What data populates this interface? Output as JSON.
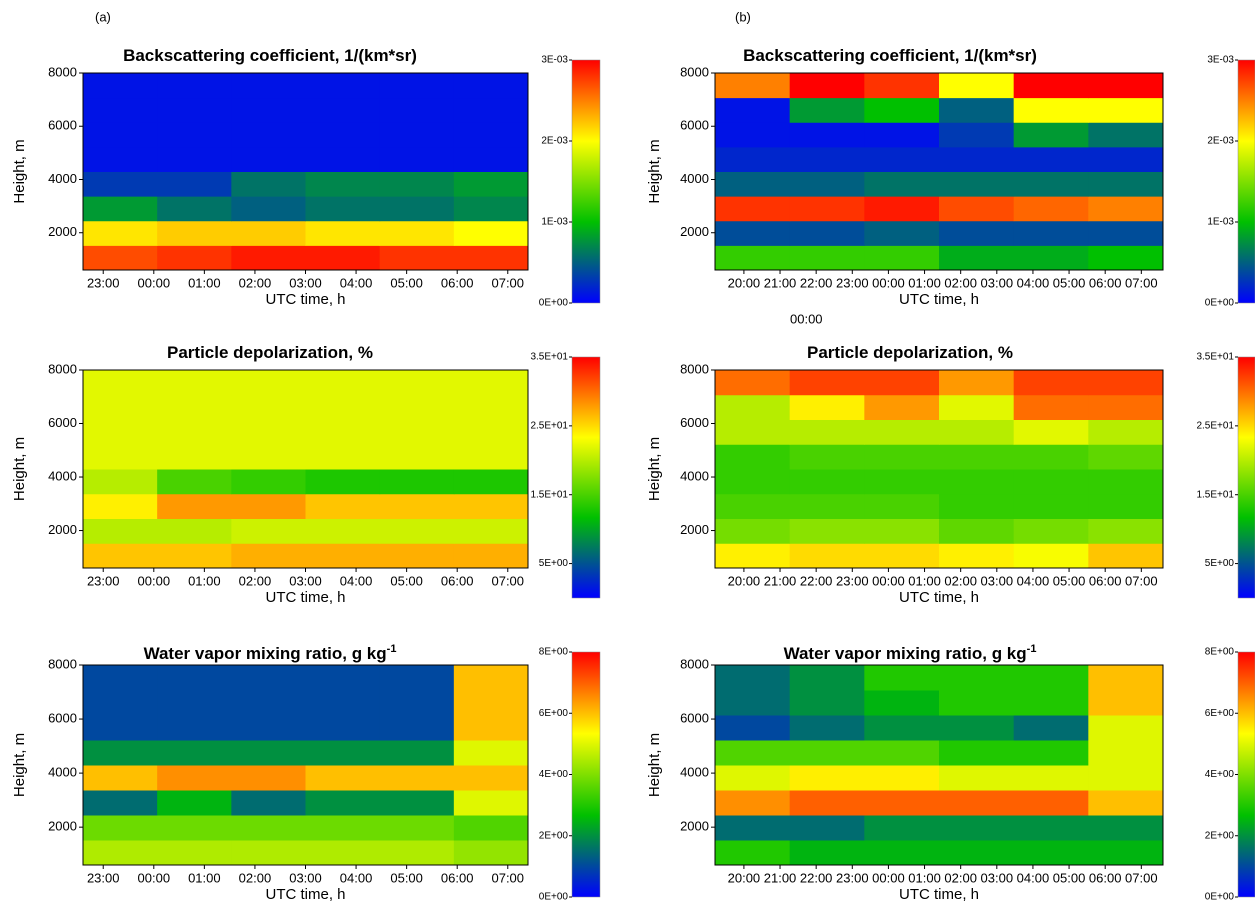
{
  "labels": [
    "(a)",
    "(b)"
  ],
  "chart_data": [
    {
      "type": "heatmap",
      "title": "Backscattering coefficient, 1/(km*sr)",
      "xlabel": "UTC time, h",
      "ylabel": "Height, m",
      "xlim": [
        22.6,
        31.4
      ],
      "xticks": [
        {
          "value": 23,
          "label": "23:00"
        },
        {
          "value": 24,
          "label": "00:00"
        },
        {
          "value": 25,
          "label": "01:00"
        },
        {
          "value": 26,
          "label": "02:00"
        },
        {
          "value": 27,
          "label": "03:00"
        },
        {
          "value": 28,
          "label": "04:00"
        },
        {
          "value": 29,
          "label": "05:00"
        },
        {
          "value": 30,
          "label": "06:00"
        },
        {
          "value": 31,
          "label": "07:00"
        }
      ],
      "ylim": [
        600,
        8000
      ],
      "yticks": [
        2000,
        4000,
        6000,
        8000
      ],
      "zlim": [
        0,
        0.003
      ],
      "zticks": [
        {
          "value": 0,
          "label": "0E+00"
        },
        {
          "value": 0.001,
          "label": "1E-03"
        },
        {
          "value": 0.002,
          "label": "2E-03"
        },
        {
          "value": 0.003,
          "label": "3E-03"
        }
      ],
      "colormap": [
        "#0000ff",
        "#00c000",
        "#ffff00",
        "#ff0000"
      ],
      "z": [
        [
          0.0027,
          0.0028,
          0.0029,
          0.0029,
          0.0028,
          0.0028
        ],
        [
          0.0021,
          0.0022,
          0.0022,
          0.0021,
          0.0021,
          0.002
        ],
        [
          0.0008,
          0.0006,
          0.0005,
          0.0006,
          0.0006,
          0.0007
        ],
        [
          0.0003,
          0.0003,
          0.0006,
          0.0007,
          0.0007,
          0.0008
        ],
        [
          0.0001,
          0.0001,
          0.0001,
          0.0001,
          0.0001,
          0.0001
        ],
        [
          0.0001,
          0.0001,
          0.0001,
          0.0001,
          0.0001,
          0.0001
        ],
        [
          0.0001,
          0.0001,
          0.0001,
          0.0001,
          0.0001,
          0.0001
        ],
        [
          0.0001,
          0.0001,
          0.0001,
          0.0001,
          0.0001,
          0.0001
        ]
      ]
    },
    {
      "type": "heatmap",
      "title": "Backscattering coefficient, 1/(km*sr)",
      "xlabel": "UTC time, h",
      "ylabel": "Height, m",
      "annotation": "00:00",
      "xlim": [
        19.2,
        31.6
      ],
      "xticks": [
        {
          "value": 20,
          "label": "20:00"
        },
        {
          "value": 21,
          "label": "21:00"
        },
        {
          "value": 22,
          "label": "22:00"
        },
        {
          "value": 23,
          "label": "23:00"
        },
        {
          "value": 24,
          "label": "00:00"
        },
        {
          "value": 25,
          "label": "01:00"
        },
        {
          "value": 26,
          "label": "02:00"
        },
        {
          "value": 27,
          "label": "03:00"
        },
        {
          "value": 28,
          "label": "04:00"
        },
        {
          "value": 29,
          "label": "05:00"
        },
        {
          "value": 30,
          "label": "06:00"
        },
        {
          "value": 31,
          "label": "07:00"
        }
      ],
      "ylim": [
        600,
        8000
      ],
      "yticks": [
        2000,
        4000,
        6000,
        8000
      ],
      "zlim": [
        0,
        0.003
      ],
      "zticks": [
        {
          "value": 0,
          "label": "0E+00"
        },
        {
          "value": 0.001,
          "label": "1E-03"
        },
        {
          "value": 0.002,
          "label": "2E-03"
        },
        {
          "value": 0.003,
          "label": "3E-03"
        }
      ],
      "colormap": [
        "#0000ff",
        "#00c000",
        "#ffff00",
        "#ff0000"
      ],
      "z": [
        [
          0.0012,
          0.0012,
          0.0012,
          0.0009,
          0.0009,
          0.001
        ],
        [
          0.0004,
          0.0004,
          0.0005,
          0.0004,
          0.0004,
          0.0004
        ],
        [
          0.0028,
          0.0028,
          0.0029,
          0.0027,
          0.0026,
          0.0025
        ],
        [
          0.0005,
          0.0005,
          0.0006,
          0.0006,
          0.0006,
          0.0006
        ],
        [
          0.0002,
          0.0002,
          0.0002,
          0.0002,
          0.0002,
          0.0002
        ],
        [
          0.0001,
          0.0001,
          0.0001,
          0.0003,
          0.0008,
          0.0006
        ],
        [
          0.0001,
          0.0008,
          0.001,
          0.0005,
          0.002,
          0.002
        ],
        [
          0.0025,
          0.003,
          0.0028,
          0.002,
          0.003,
          0.003
        ]
      ]
    },
    {
      "type": "heatmap",
      "title": "Particle depolarization, %",
      "xlabel": "UTC time, h",
      "ylabel": "Height, m",
      "xlim": [
        22.6,
        31.4
      ],
      "xticks": [
        {
          "value": 23,
          "label": "23:00"
        },
        {
          "value": 24,
          "label": "00:00"
        },
        {
          "value": 25,
          "label": "01:00"
        },
        {
          "value": 26,
          "label": "02:00"
        },
        {
          "value": 27,
          "label": "03:00"
        },
        {
          "value": 28,
          "label": "04:00"
        },
        {
          "value": 29,
          "label": "05:00"
        },
        {
          "value": 30,
          "label": "06:00"
        },
        {
          "value": 31,
          "label": "07:00"
        }
      ],
      "ylim": [
        600,
        8000
      ],
      "yticks": [
        2000,
        4000,
        6000,
        8000
      ],
      "zlim": [
        0,
        35
      ],
      "zticks": [
        {
          "value": 5,
          "label": "5E+00"
        },
        {
          "value": 15,
          "label": "1.5E+01"
        },
        {
          "value": 25,
          "label": "2.5E+01"
        },
        {
          "value": 35,
          "label": "3.5E+01"
        }
      ],
      "colormap": [
        "#0000ff",
        "#00c000",
        "#ffff00",
        "#ff0000"
      ],
      "z": [
        [
          26,
          26,
          27,
          27,
          27,
          27
        ],
        [
          20,
          20,
          21,
          21,
          21,
          21
        ],
        [
          24,
          28,
          28,
          26,
          26,
          26
        ],
        [
          20,
          15,
          14,
          13,
          13,
          13
        ],
        [
          22,
          22,
          22,
          22,
          22,
          22
        ],
        [
          22,
          22,
          22,
          22,
          22,
          22
        ],
        [
          22,
          22,
          22,
          22,
          22,
          22
        ],
        [
          22,
          22,
          22,
          22,
          22,
          22
        ]
      ]
    },
    {
      "type": "heatmap",
      "title": "Particle depolarization, %",
      "xlabel": "UTC time, h",
      "ylabel": "Height, m",
      "xlim": [
        19.2,
        31.6
      ],
      "xticks": [
        {
          "value": 20,
          "label": "20:00"
        },
        {
          "value": 21,
          "label": "21:00"
        },
        {
          "value": 22,
          "label": "22:00"
        },
        {
          "value": 23,
          "label": "23:00"
        },
        {
          "value": 24,
          "label": "00:00"
        },
        {
          "value": 25,
          "label": "01:00"
        },
        {
          "value": 26,
          "label": "02:00"
        },
        {
          "value": 27,
          "label": "03:00"
        },
        {
          "value": 28,
          "label": "04:00"
        },
        {
          "value": 29,
          "label": "05:00"
        },
        {
          "value": 30,
          "label": "06:00"
        },
        {
          "value": 31,
          "label": "07:00"
        }
      ],
      "ylim": [
        600,
        8000
      ],
      "yticks": [
        2000,
        4000,
        6000,
        8000
      ],
      "zlim": [
        0,
        35
      ],
      "zticks": [
        {
          "value": 5,
          "label": "5E+00"
        },
        {
          "value": 15,
          "label": "1.5E+01"
        },
        {
          "value": 25,
          "label": "2.5E+01"
        },
        {
          "value": 35,
          "label": "3.5E+01"
        }
      ],
      "colormap": [
        "#0000ff",
        "#00c000",
        "#ffff00",
        "#ff0000"
      ],
      "z": [
        [
          24,
          25,
          25,
          24,
          23,
          26
        ],
        [
          17,
          18,
          18,
          16,
          17,
          18
        ],
        [
          15,
          15,
          15,
          14,
          14,
          14
        ],
        [
          14,
          14,
          14,
          14,
          14,
          14
        ],
        [
          14,
          15,
          15,
          15,
          15,
          16
        ],
        [
          20,
          20,
          20,
          20,
          22,
          20
        ],
        [
          20,
          24,
          28,
          22,
          30,
          30
        ],
        [
          30,
          32,
          32,
          28,
          32,
          32
        ]
      ]
    },
    {
      "type": "heatmap",
      "title": "Water vapor mixing ratio, g kg",
      "title_superscript": "-1",
      "xlabel": "UTC time, h",
      "ylabel": "Height, m",
      "xlim": [
        22.6,
        31.4
      ],
      "xticks": [
        {
          "value": 23,
          "label": "23:00"
        },
        {
          "value": 24,
          "label": "00:00"
        },
        {
          "value": 25,
          "label": "01:00"
        },
        {
          "value": 26,
          "label": "02:00"
        },
        {
          "value": 27,
          "label": "03:00"
        },
        {
          "value": 28,
          "label": "04:00"
        },
        {
          "value": 29,
          "label": "05:00"
        },
        {
          "value": 30,
          "label": "06:00"
        },
        {
          "value": 31,
          "label": "07:00"
        }
      ],
      "ylim": [
        600,
        8000
      ],
      "yticks": [
        2000,
        4000,
        6000,
        8000
      ],
      "zlim": [
        0,
        8
      ],
      "zticks": [
        {
          "value": 0,
          "label": "0E+00"
        },
        {
          "value": 2,
          "label": "2E+00"
        },
        {
          "value": 4,
          "label": "4E+00"
        },
        {
          "value": 6,
          "label": "6E+00"
        },
        {
          "value": 8,
          "label": "8E+00"
        }
      ],
      "colormap": [
        "#0000ff",
        "#00c000",
        "#ffff00",
        "#ff0000"
      ],
      "z": [
        [
          4.5,
          4.5,
          4.5,
          4.5,
          4.5,
          4.2
        ],
        [
          3.8,
          3.8,
          3.8,
          3.8,
          3.8,
          3.5
        ],
        [
          1.5,
          2.5,
          1.5,
          2,
          2,
          5
        ],
        [
          6,
          6.5,
          6.5,
          6,
          6,
          6
        ],
        [
          2,
          2,
          2,
          2,
          2,
          5
        ],
        [
          1,
          1,
          1,
          1,
          1,
          6
        ],
        [
          1,
          1,
          1,
          1,
          1,
          6
        ],
        [
          1,
          1,
          1,
          1,
          1,
          6
        ]
      ]
    },
    {
      "type": "heatmap",
      "title": "Water vapor mixing ratio, g kg",
      "title_superscript": "-1",
      "xlabel": "UTC time, h",
      "ylabel": "Height, m",
      "xlim": [
        19.2,
        31.6
      ],
      "xticks": [
        {
          "value": 20,
          "label": "20:00"
        },
        {
          "value": 21,
          "label": "21:00"
        },
        {
          "value": 22,
          "label": "22:00"
        },
        {
          "value": 23,
          "label": "23:00"
        },
        {
          "value": 24,
          "label": "00:00"
        },
        {
          "value": 25,
          "label": "01:00"
        },
        {
          "value": 26,
          "label": "02:00"
        },
        {
          "value": 27,
          "label": "03:00"
        },
        {
          "value": 28,
          "label": "04:00"
        },
        {
          "value": 29,
          "label": "05:00"
        },
        {
          "value": 30,
          "label": "06:00"
        },
        {
          "value": 31,
          "label": "07:00"
        }
      ],
      "ylim": [
        600,
        8000
      ],
      "yticks": [
        2000,
        4000,
        6000,
        8000
      ],
      "zlim": [
        0,
        8
      ],
      "zticks": [
        {
          "value": 0,
          "label": "0E+00"
        },
        {
          "value": 2,
          "label": "2E+00"
        },
        {
          "value": 4,
          "label": "4E+00"
        },
        {
          "value": 6,
          "label": "6E+00"
        },
        {
          "value": 8,
          "label": "8E+00"
        }
      ],
      "colormap": [
        "#0000ff",
        "#00c000",
        "#ffff00",
        "#ff0000"
      ],
      "z": [
        [
          3,
          2.5,
          2.5,
          2.5,
          2.5,
          2.5
        ],
        [
          1.5,
          1.5,
          2,
          2,
          2,
          2
        ],
        [
          6.5,
          7,
          7,
          7,
          7,
          6
        ],
        [
          5,
          5.5,
          5.5,
          5,
          5,
          5
        ],
        [
          3.5,
          3.5,
          3.5,
          3,
          3,
          5
        ],
        [
          1,
          1.5,
          2,
          2,
          1.5,
          5
        ],
        [
          1.5,
          2,
          2.5,
          3,
          3,
          6
        ],
        [
          1.5,
          2,
          3,
          3,
          3,
          6
        ]
      ]
    }
  ]
}
